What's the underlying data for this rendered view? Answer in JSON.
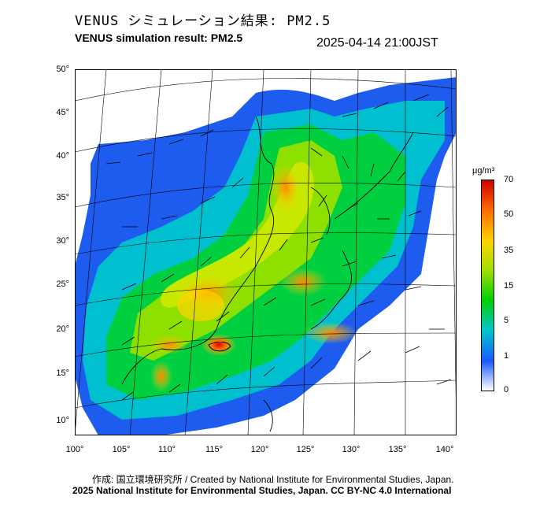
{
  "header": {
    "title_ja": "VENUS シミュレーション結果: PM2.5",
    "title_en": "VENUS simulation result: PM2.5",
    "timestamp": "2025-04-14 21:00JST"
  },
  "map": {
    "lat_labels": [
      "50°",
      "45°",
      "40°",
      "35°",
      "30°",
      "25°",
      "20°",
      "15°",
      "10°"
    ],
    "lon_labels": [
      "100°",
      "105°",
      "110°",
      "115°",
      "120°",
      "125°",
      "130°",
      "135°",
      "140°"
    ]
  },
  "colorbar": {
    "unit": "μg/m³",
    "ticks": [
      "70",
      "50",
      "35",
      "15",
      "5",
      "1",
      "0"
    ],
    "colors": [
      "#d00000",
      "#ff6a00",
      "#ffd400",
      "#9ee000",
      "#00d000",
      "#00c8c8",
      "#1a5aff",
      "#ffffff"
    ]
  },
  "footer": {
    "credit_line1": "作成: 国立環境研究所 / Created by National Institute for Environmental Studies, Japan.",
    "credit_line2": "2025 National Institute for Environmental Studies, Japan. CC BY-NC 4.0 International"
  }
}
